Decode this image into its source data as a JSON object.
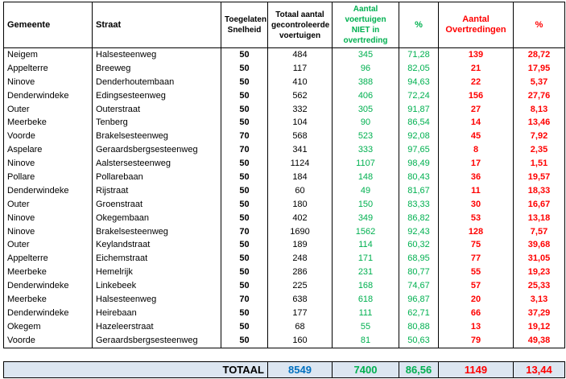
{
  "header": [
    "Gemeente",
    "Straat",
    "Toegelaten Snelheid",
    "Totaal aantal gecontroleerde voertuigen",
    "Aantal voertuigen NIET in overtreding",
    "%",
    "Aantal Overtredingen",
    "%"
  ],
  "rows": [
    [
      "Neigem",
      "Halsesteenweg",
      "50",
      "484",
      "345",
      "71,28",
      "139",
      "28,72"
    ],
    [
      "Appelterre",
      "Breeweg",
      "50",
      "117",
      "96",
      "82,05",
      "21",
      "17,95"
    ],
    [
      "Ninove",
      "Denderhoutembaan",
      "50",
      "410",
      "388",
      "94,63",
      "22",
      "5,37"
    ],
    [
      "Denderwindeke",
      "Edingsesteenweg",
      "50",
      "562",
      "406",
      "72,24",
      "156",
      "27,76"
    ],
    [
      "Outer",
      "Outerstraat",
      "50",
      "332",
      "305",
      "91,87",
      "27",
      "8,13"
    ],
    [
      "Meerbeke",
      "Tenberg",
      "50",
      "104",
      "90",
      "86,54",
      "14",
      "13,46"
    ],
    [
      "Voorde",
      "Brakelsesteenweg",
      "70",
      "568",
      "523",
      "92,08",
      "45",
      "7,92"
    ],
    [
      "Aspelare",
      "Geraardsbergsesteenweg",
      "70",
      "341",
      "333",
      "97,65",
      "8",
      "2,35"
    ],
    [
      "Ninove",
      "Aalstersesteenweg",
      "50",
      "1124",
      "1107",
      "98,49",
      "17",
      "1,51"
    ],
    [
      "Pollare",
      "Pollarebaan",
      "50",
      "184",
      "148",
      "80,43",
      "36",
      "19,57"
    ],
    [
      "Denderwindeke",
      "Rijstraat",
      "50",
      "60",
      "49",
      "81,67",
      "11",
      "18,33"
    ],
    [
      "Outer",
      "Groenstraat",
      "50",
      "180",
      "150",
      "83,33",
      "30",
      "16,67"
    ],
    [
      "Ninove",
      "Okegembaan",
      "50",
      "402",
      "349",
      "86,82",
      "53",
      "13,18"
    ],
    [
      "Ninove",
      "Brakelsesteenweg",
      "70",
      "1690",
      "1562",
      "92,43",
      "128",
      "7,57"
    ],
    [
      "Outer",
      "Keylandstraat",
      "50",
      "189",
      "114",
      "60,32",
      "75",
      "39,68"
    ],
    [
      "Appelterre",
      "Eichemstraat",
      "50",
      "248",
      "171",
      "68,95",
      "77",
      "31,05"
    ],
    [
      "Meerbeke",
      "Hemelrijk",
      "50",
      "286",
      "231",
      "80,77",
      "55",
      "19,23"
    ],
    [
      "Denderwindeke",
      "Linkebeek",
      "50",
      "225",
      "168",
      "74,67",
      "57",
      "25,33"
    ],
    [
      "Meerbeke",
      "Halsesteenweg",
      "70",
      "638",
      "618",
      "96,87",
      "20",
      "3,13"
    ],
    [
      "Denderwindeke",
      "Heirebaan",
      "50",
      "177",
      "111",
      "62,71",
      "66",
      "37,29"
    ],
    [
      "Okegem",
      "Hazeleerstraat",
      "50",
      "68",
      "55",
      "80,88",
      "13",
      "19,12"
    ],
    [
      "Voorde",
      "Geraardsbergsesteenweg",
      "50",
      "160",
      "81",
      "50,63",
      "79",
      "49,38"
    ]
  ],
  "total": [
    "TOTAAL",
    "8549",
    "7400",
    "86,56",
    "1149",
    "13,44"
  ]
}
